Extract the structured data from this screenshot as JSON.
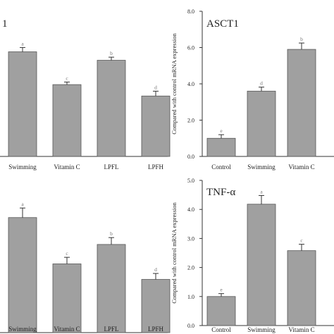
{
  "chart_data": [
    {
      "type": "bar",
      "title": "1",
      "ylabel": "",
      "categories": [
        "Swimming",
        "Vitamin C",
        "LPFL",
        "LPFH"
      ],
      "values": [
        6.06,
        4.16,
        5.57,
        3.5
      ],
      "errors": [
        0.25,
        0.15,
        0.18,
        0.28
      ],
      "letters": [
        "a",
        "c",
        "b",
        "d"
      ],
      "ylim": [
        0,
        8
      ]
    },
    {
      "type": "bar",
      "title": "ASCT1",
      "ylabel": "Compared with  control mRNA expression",
      "categories": [
        "Control",
        "Swimming",
        "Vitamin C"
      ],
      "values": [
        1.0,
        3.6,
        5.9
      ],
      "errors": [
        0.2,
        0.22,
        0.35
      ],
      "letters": [
        "e",
        "d",
        "b"
      ],
      "ylim": [
        0,
        8
      ],
      "yticks": [
        "0.0",
        "2.0",
        "4.0",
        "6.0",
        "8.0"
      ]
    },
    {
      "type": "bar",
      "title": "",
      "ylabel": "",
      "categories": [
        "Swimming",
        "Vitamin C",
        "LPFL",
        "LPFH"
      ],
      "values": [
        3.85,
        2.3,
        2.95,
        1.78
      ],
      "errors": [
        0.32,
        0.22,
        0.23,
        0.2
      ],
      "letters": [
        "a",
        "c",
        "b",
        "d"
      ],
      "ylim": [
        0,
        5
      ]
    },
    {
      "type": "bar",
      "title": "TNF-α",
      "ylabel": "Compared with  control mRNA expression",
      "categories": [
        "Control",
        "Swimming",
        "Vitamin C"
      ],
      "values": [
        1.0,
        4.18,
        2.58
      ],
      "errors": [
        0.1,
        0.3,
        0.22
      ],
      "letters": [
        "e",
        "a",
        "c"
      ],
      "ylim": [
        0,
        5
      ],
      "yticks": [
        "0.0",
        "1.0",
        "2.0",
        "3.0",
        "4.0",
        "5.0"
      ]
    }
  ],
  "colors": {
    "bar": "#a0a0a0",
    "bar_stroke": "#555555",
    "axis": "#333333"
  }
}
